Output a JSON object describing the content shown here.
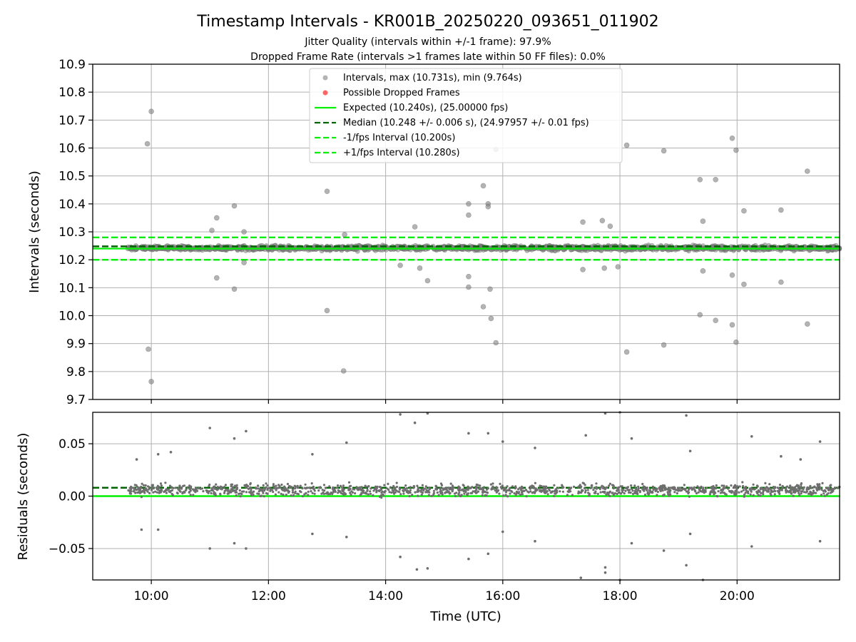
{
  "title": "Timestamp Intervals - KR001B_20250220_093651_011902",
  "subtitle_1": "Jitter Quality (intervals within +/-1 frame): 97.9%",
  "subtitle_2": "Dropped Frame Rate (intervals >1 frames late within 50 FF files): 0.0%",
  "colors": {
    "points": "#808080",
    "dropped": "#ff0000",
    "expected": "#00ee00",
    "median": "#006400",
    "grid": "#b0b0b0"
  },
  "chart_data": [
    {
      "type": "scatter",
      "panel": "top",
      "ylabel": "Intervals (seconds)",
      "xlim": [
        "09:00",
        "21:45"
      ],
      "ylim": [
        9.7,
        10.9
      ],
      "y_ticks": [
        "10.9",
        "10.8",
        "10.7",
        "10.6",
        "10.5",
        "10.4",
        "10.3",
        "10.2",
        "10.1",
        "10.0",
        "9.9",
        "9.8",
        "9.7"
      ],
      "x_ticks": [
        "10:00",
        "12:00",
        "14:00",
        "16:00",
        "18:00",
        "20:00"
      ],
      "grid": true,
      "legend_position": "top-center",
      "legend": [
        "Intervals, max (10.731s), min (9.764s)",
        "Possible Dropped Frames",
        "Expected (10.240s), (25.00000 fps)",
        "Median (10.248 +/- 0.006 s), (24.97957 +/- 0.01 fps)",
        "-1/fps Interval (10.200s)",
        "+1/fps Interval (10.280s)"
      ],
      "reference_lines": {
        "expected": 10.24,
        "median": 10.248,
        "minus_one_frame": 10.2,
        "plus_one_frame": 10.28
      },
      "band": {
        "x_range": [
          "09:36",
          "21:45"
        ],
        "center": 10.242,
        "spread": 0.012
      },
      "series": [
        {
          "values": [
            {
              "x": "09:56",
              "y": 10.615
            },
            {
              "x": "10:00",
              "y": 10.731
            },
            {
              "x": "09:57",
              "y": 9.88
            },
            {
              "x": "10:00",
              "y": 9.764
            },
            {
              "x": "11:07",
              "y": 10.35
            },
            {
              "x": "11:02",
              "y": 10.305
            },
            {
              "x": "11:07",
              "y": 10.135
            },
            {
              "x": "11:25",
              "y": 10.393
            },
            {
              "x": "11:25",
              "y": 10.095
            },
            {
              "x": "11:35",
              "y": 10.3
            },
            {
              "x": "11:35",
              "y": 10.19
            },
            {
              "x": "13:00",
              "y": 10.445
            },
            {
              "x": "13:00",
              "y": 10.018
            },
            {
              "x": "13:17",
              "y": 9.802
            },
            {
              "x": "13:18",
              "y": 10.29
            },
            {
              "x": "14:30",
              "y": 10.318
            },
            {
              "x": "14:35",
              "y": 10.17
            },
            {
              "x": "14:43",
              "y": 10.125
            },
            {
              "x": "14:15",
              "y": 10.18
            },
            {
              "x": "15:25",
              "y": 10.4
            },
            {
              "x": "15:25",
              "y": 10.36
            },
            {
              "x": "15:25",
              "y": 10.14
            },
            {
              "x": "15:25",
              "y": 10.102
            },
            {
              "x": "15:40",
              "y": 10.465
            },
            {
              "x": "15:45",
              "y": 10.4
            },
            {
              "x": "15:45",
              "y": 10.39
            },
            {
              "x": "15:40",
              "y": 10.032
            },
            {
              "x": "15:47",
              "y": 10.095
            },
            {
              "x": "15:48",
              "y": 9.99
            },
            {
              "x": "15:53",
              "y": 9.903
            },
            {
              "x": "15:53",
              "y": 10.595
            },
            {
              "x": "17:22",
              "y": 10.335
            },
            {
              "x": "17:22",
              "y": 10.165
            },
            {
              "x": "17:42",
              "y": 10.34
            },
            {
              "x": "17:44",
              "y": 10.17
            },
            {
              "x": "18:07",
              "y": 10.61
            },
            {
              "x": "18:07",
              "y": 9.87
            },
            {
              "x": "18:45",
              "y": 10.59
            },
            {
              "x": "18:45",
              "y": 9.895
            },
            {
              "x": "19:22",
              "y": 10.487
            },
            {
              "x": "19:25",
              "y": 10.338
            },
            {
              "x": "19:22",
              "y": 10.003
            },
            {
              "x": "19:25",
              "y": 10.16
            },
            {
              "x": "19:38",
              "y": 10.487
            },
            {
              "x": "19:38",
              "y": 9.983
            },
            {
              "x": "19:55",
              "y": 10.635
            },
            {
              "x": "19:59",
              "y": 10.592
            },
            {
              "x": "19:55",
              "y": 10.145
            },
            {
              "x": "19:55",
              "y": 9.967
            },
            {
              "x": "19:59",
              "y": 9.905
            },
            {
              "x": "20:07",
              "y": 10.375
            },
            {
              "x": "20:07",
              "y": 10.112
            },
            {
              "x": "20:45",
              "y": 10.378
            },
            {
              "x": "20:45",
              "y": 10.12
            },
            {
              "x": "21:12",
              "y": 10.517
            },
            {
              "x": "21:12",
              "y": 9.97
            },
            {
              "x": "17:50",
              "y": 10.32
            },
            {
              "x": "17:58",
              "y": 10.175
            }
          ]
        }
      ]
    },
    {
      "type": "scatter",
      "panel": "bottom",
      "xlabel": "Time (UTC)",
      "ylabel": "Residuals (seconds)",
      "xlim": [
        "09:00",
        "21:45"
      ],
      "ylim": [
        -0.08,
        0.08
      ],
      "y_ticks": [
        "0.05",
        "0.00",
        "−0.05"
      ],
      "x_ticks": [
        "10:00",
        "12:00",
        "14:00",
        "16:00",
        "18:00",
        "20:00"
      ],
      "grid": true,
      "reference_lines": {
        "expected": 0.0,
        "median": 0.008
      },
      "band": {
        "x_range": [
          "09:36",
          "21:45"
        ],
        "center": 0.006,
        "spread": 0.008
      },
      "series": [
        {
          "values": [
            {
              "x": "09:45",
              "y": 0.035
            },
            {
              "x": "09:50",
              "y": -0.032
            },
            {
              "x": "10:07",
              "y": 0.04
            },
            {
              "x": "10:07",
              "y": -0.032
            },
            {
              "x": "10:20",
              "y": 0.042
            },
            {
              "x": "11:00",
              "y": 0.065
            },
            {
              "x": "11:00",
              "y": -0.05
            },
            {
              "x": "11:25",
              "y": 0.055
            },
            {
              "x": "11:25",
              "y": -0.045
            },
            {
              "x": "11:37",
              "y": 0.062
            },
            {
              "x": "11:37",
              "y": -0.05
            },
            {
              "x": "12:45",
              "y": 0.04
            },
            {
              "x": "12:45",
              "y": -0.036
            },
            {
              "x": "13:20",
              "y": 0.051
            },
            {
              "x": "13:20",
              "y": -0.039
            },
            {
              "x": "14:15",
              "y": 0.078
            },
            {
              "x": "14:15",
              "y": -0.058
            },
            {
              "x": "14:32",
              "y": -0.07
            },
            {
              "x": "14:43",
              "y": 0.079
            },
            {
              "x": "14:43",
              "y": -0.069
            },
            {
              "x": "14:30",
              "y": 0.07
            },
            {
              "x": "15:25",
              "y": 0.06
            },
            {
              "x": "15:25",
              "y": -0.06
            },
            {
              "x": "15:45",
              "y": 0.06
            },
            {
              "x": "15:45",
              "y": -0.055
            },
            {
              "x": "16:00",
              "y": 0.052
            },
            {
              "x": "16:00",
              "y": -0.034
            },
            {
              "x": "16:33",
              "y": 0.046
            },
            {
              "x": "16:33",
              "y": -0.043
            },
            {
              "x": "17:20",
              "y": -0.078
            },
            {
              "x": "17:25",
              "y": 0.058
            },
            {
              "x": "17:45",
              "y": -0.068
            },
            {
              "x": "17:45",
              "y": -0.073
            },
            {
              "x": "17:45",
              "y": 0.079
            },
            {
              "x": "18:00",
              "y": 0.08
            },
            {
              "x": "18:00",
              "y": -0.08
            },
            {
              "x": "18:12",
              "y": 0.055
            },
            {
              "x": "18:12",
              "y": -0.045
            },
            {
              "x": "18:45",
              "y": -0.052
            },
            {
              "x": "19:08",
              "y": 0.077
            },
            {
              "x": "19:08",
              "y": -0.066
            },
            {
              "x": "19:12",
              "y": 0.043
            },
            {
              "x": "19:12",
              "y": -0.036
            },
            {
              "x": "19:25",
              "y": -0.08
            },
            {
              "x": "20:15",
              "y": 0.057
            },
            {
              "x": "20:15",
              "y": -0.048
            },
            {
              "x": "20:45",
              "y": 0.038
            },
            {
              "x": "21:05",
              "y": 0.035
            },
            {
              "x": "21:25",
              "y": 0.052
            },
            {
              "x": "21:25",
              "y": -0.043
            }
          ]
        }
      ]
    }
  ]
}
